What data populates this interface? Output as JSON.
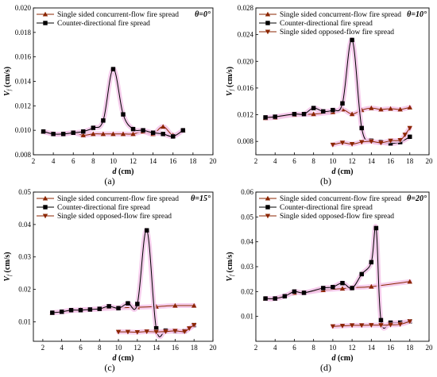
{
  "chart_data": [
    {
      "type": "line",
      "panel_label": "(a)",
      "angle_label": "θ=0°",
      "xlabel": "d (cm)",
      "ylabel": "Vf (cm/s)",
      "xlim": [
        2,
        20
      ],
      "ylim": [
        0.008,
        0.02
      ],
      "xticks": [
        2,
        4,
        6,
        8,
        10,
        12,
        14,
        16,
        18,
        20
      ],
      "yticks": [
        0.008,
        0.01,
        0.012,
        0.014,
        0.016,
        0.018,
        0.02
      ],
      "ytick_labels": [
        "0.008",
        "0.010",
        "0.012",
        "0.014",
        "0.016",
        "0.018",
        "0.020"
      ],
      "legend": "top-left",
      "series": [
        {
          "name": "Single sided concurrent-flow fire spread",
          "marker": "triangle-up",
          "color": "#8B2500",
          "x": [
            3,
            4,
            5,
            6,
            7,
            8,
            9,
            10,
            11,
            12,
            13,
            14,
            15,
            16,
            17
          ],
          "y": [
            0.0099,
            0.0097,
            0.0097,
            0.0098,
            0.0096,
            0.0097,
            0.0097,
            0.0097,
            0.0097,
            0.0097,
            0.0099,
            0.0097,
            0.0103,
            0.0096,
            0.01
          ]
        },
        {
          "name": "Counter-directional fire spread",
          "marker": "square",
          "color": "#000000",
          "x": [
            3,
            4,
            5,
            6,
            7,
            8,
            9,
            10,
            11,
            12,
            13,
            14,
            15,
            16,
            17
          ],
          "y": [
            0.0099,
            0.0097,
            0.0097,
            0.0098,
            0.0099,
            0.0102,
            0.0108,
            0.015,
            0.0113,
            0.0101,
            0.01,
            0.0098,
            0.0097,
            0.0095,
            0.01
          ]
        }
      ]
    },
    {
      "type": "line",
      "panel_label": "(b)",
      "angle_label": "θ=10°",
      "xlabel": "d (cm)",
      "ylabel": "Vf (cm/s)",
      "xlim": [
        2,
        20
      ],
      "ylim": [
        0.006,
        0.028
      ],
      "xticks": [
        2,
        4,
        6,
        8,
        10,
        12,
        14,
        16,
        18,
        20
      ],
      "yticks": [
        0.008,
        0.012,
        0.016,
        0.02,
        0.024,
        0.028
      ],
      "ytick_labels": [
        "0.008",
        "0.012",
        "0.016",
        "0.020",
        "0.024",
        "0.028"
      ],
      "legend": "top-left",
      "series": [
        {
          "name": "Single sided concurrent-flow fire spread",
          "marker": "triangle-up",
          "color": "#8B2500",
          "x": [
            3,
            4,
            6,
            8,
            10,
            11,
            12,
            13,
            14,
            15,
            16,
            17,
            18
          ],
          "y": [
            0.0115,
            0.0116,
            0.012,
            0.0121,
            0.0124,
            0.0128,
            0.0121,
            0.0127,
            0.013,
            0.0128,
            0.0129,
            0.0128,
            0.0131
          ]
        },
        {
          "name": "Counter-directional fire spread",
          "marker": "square",
          "color": "#000000",
          "x": [
            3,
            4,
            6,
            7,
            8,
            9,
            10,
            11,
            12,
            13,
            14,
            15,
            16,
            17,
            18
          ],
          "y": [
            0.0116,
            0.0117,
            0.0121,
            0.0121,
            0.013,
            0.0125,
            0.0127,
            0.0137,
            0.0232,
            0.01,
            0.0081,
            0.0079,
            0.0077,
            0.0079,
            0.0087
          ]
        },
        {
          "name": "Single sided opposed-flow fire spread",
          "marker": "triangle-down",
          "color": "#8B2500",
          "x": [
            10,
            11,
            12,
            13,
            14,
            15,
            16,
            17,
            17.5,
            18
          ],
          "y": [
            0.0075,
            0.0078,
            0.0076,
            0.0079,
            0.008,
            0.0078,
            0.0081,
            0.0082,
            0.009,
            0.01
          ]
        }
      ]
    },
    {
      "type": "line",
      "panel_label": "(c)",
      "angle_label": "θ=15°",
      "xlabel": "d (cm)",
      "ylabel": "Vf (cm/s)",
      "xlim": [
        1,
        20
      ],
      "ylim": [
        0.004,
        0.05
      ],
      "xticks": [
        2,
        4,
        6,
        8,
        10,
        12,
        14,
        16,
        18,
        20
      ],
      "yticks": [
        0.01,
        0.02,
        0.03,
        0.04,
        0.05
      ],
      "ytick_labels": [
        "0.01",
        "0.02",
        "0.03",
        "0.04",
        "0.05"
      ],
      "legend": "top-left",
      "series": [
        {
          "name": "Single sided concurrent-flow fire spread",
          "marker": "triangle-up",
          "color": "#8B2500",
          "x": [
            3,
            4,
            6,
            8,
            10,
            12,
            14,
            16,
            18
          ],
          "y": [
            0.0128,
            0.0131,
            0.0137,
            0.014,
            0.0143,
            0.0145,
            0.0147,
            0.015,
            0.015
          ]
        },
        {
          "name": "Counter-directional fire spread",
          "marker": "square",
          "color": "#000000",
          "x": [
            3,
            4,
            5,
            6,
            7,
            8,
            9,
            10,
            11,
            12,
            13,
            14,
            15,
            16,
            17,
            18
          ],
          "y": [
            0.0128,
            0.0131,
            0.0136,
            0.0136,
            0.0138,
            0.014,
            0.0148,
            0.0142,
            0.0157,
            0.0155,
            0.0382,
            0.008,
            0.0073,
            0.0071,
            0.0071,
            0.009
          ]
        },
        {
          "name": "Single sided opposed-flow fire spread",
          "marker": "triangle-down",
          "color": "#8B2500",
          "x": [
            10,
            11,
            12,
            13,
            14,
            15,
            16,
            17,
            17.5,
            18
          ],
          "y": [
            0.0069,
            0.0069,
            0.0068,
            0.007,
            0.0069,
            0.007,
            0.0072,
            0.007,
            0.008,
            0.009
          ]
        }
      ]
    },
    {
      "type": "line",
      "panel_label": "(d)",
      "angle_label": "θ=20°",
      "xlabel": "d (cm)",
      "ylabel": "Vf (cm/s)",
      "xlim": [
        2,
        20
      ],
      "ylim": [
        0,
        0.06
      ],
      "xticks": [
        2,
        4,
        6,
        8,
        10,
        12,
        14,
        16,
        18,
        20
      ],
      "yticks": [
        0.01,
        0.02,
        0.03,
        0.04,
        0.05,
        0.06
      ],
      "ytick_labels": [
        "0.01",
        "0.02",
        "0.03",
        "0.04",
        "0.05",
        "0.06"
      ],
      "legend": "top-left",
      "series": [
        {
          "name": "Single sided concurrent-flow fire spread",
          "marker": "triangle-up",
          "color": "#8B2500",
          "x": [
            3,
            4,
            6,
            7,
            9,
            11,
            12,
            14,
            18
          ],
          "y": [
            0.0172,
            0.0172,
            0.0195,
            0.0196,
            0.0206,
            0.0212,
            0.0216,
            0.022,
            0.024
          ]
        },
        {
          "name": "Counter-directional fire spread",
          "marker": "square",
          "color": "#000000",
          "x": [
            3,
            4,
            5,
            6,
            7,
            9,
            10,
            11,
            12,
            13,
            14,
            14.5,
            15,
            16,
            17,
            18
          ],
          "y": [
            0.0172,
            0.0172,
            0.0181,
            0.02,
            0.0195,
            0.0214,
            0.0218,
            0.0234,
            0.0214,
            0.027,
            0.0318,
            0.0455,
            0.0085,
            0.0075,
            0.0075,
            0.008
          ]
        },
        {
          "name": "Single sided opposed-flow fire spread",
          "marker": "triangle-down",
          "color": "#8B2500",
          "x": [
            10,
            11,
            12,
            13,
            14,
            15,
            16,
            17,
            18
          ],
          "y": [
            0.006,
            0.0062,
            0.0064,
            0.0064,
            0.0065,
            0.0065,
            0.0066,
            0.0068,
            0.008
          ]
        }
      ]
    }
  ]
}
